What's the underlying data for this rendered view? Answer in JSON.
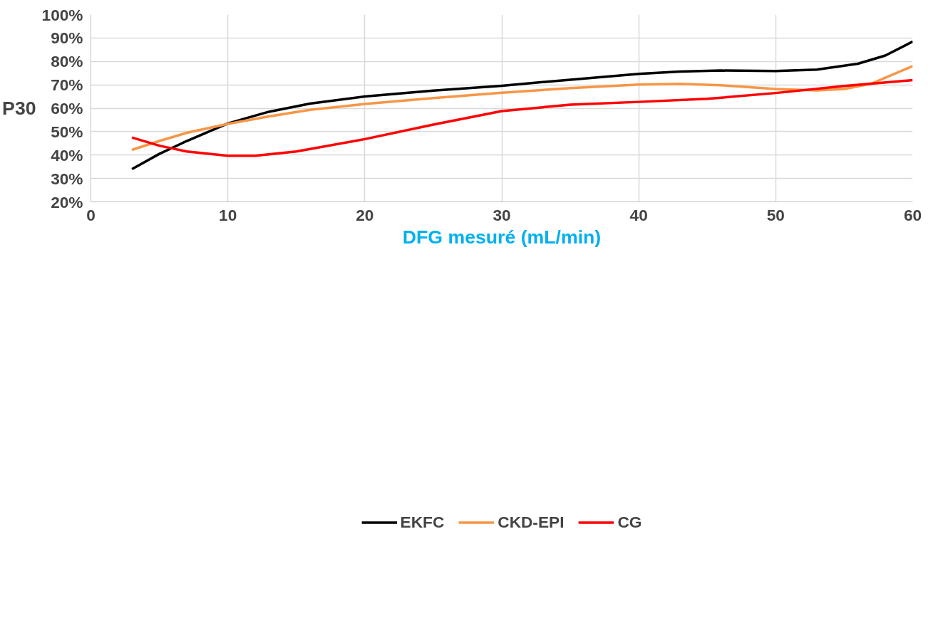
{
  "chart_data": {
    "type": "line",
    "xlabel": "DFG mesuré (mL/min)",
    "ylabel": "P30",
    "xlim": [
      0,
      60
    ],
    "xticks": [
      0,
      10,
      20,
      30,
      40,
      50,
      60
    ],
    "ylim": [
      20,
      100
    ],
    "yticks": [
      {
        "value": 20,
        "label": "20%"
      },
      {
        "value": 30,
        "label": "30%"
      },
      {
        "value": 40,
        "label": "40%"
      },
      {
        "value": 50,
        "label": "50%"
      },
      {
        "value": 60,
        "label": "60%"
      },
      {
        "value": 70,
        "label": "70%"
      },
      {
        "value": 80,
        "label": "80%"
      },
      {
        "value": 90,
        "label": "90%"
      },
      {
        "value": 100,
        "label": "100%"
      }
    ],
    "grid": true,
    "legend": "bottom",
    "marker": "none",
    "line_style": "solid",
    "series": [
      {
        "name": "EKFC",
        "color": "#000000",
        "x": [
          3,
          5,
          7,
          10,
          13,
          16,
          20,
          25,
          30,
          35,
          40,
          43,
          46,
          50,
          53,
          56,
          58,
          60
        ],
        "values": [
          34,
          40.5,
          46,
          53.5,
          58.5,
          62,
          65,
          67.5,
          69.6,
          72.2,
          74.7,
          75.7,
          76.1,
          75.9,
          76.5,
          79,
          82.5,
          88.5
        ]
      },
      {
        "name": "CKD-EPI",
        "color": "#f79646",
        "x": [
          3,
          5,
          7,
          10,
          13,
          16,
          20,
          25,
          30,
          35,
          40,
          43,
          46,
          50,
          53,
          55,
          57,
          60
        ],
        "values": [
          42.2,
          46,
          49.5,
          53.3,
          56.5,
          59.3,
          61.8,
          64.3,
          66.6,
          68.6,
          70.1,
          70.4,
          69.8,
          68.2,
          67.6,
          68.2,
          70.5,
          78
        ]
      },
      {
        "name": "CG",
        "color": "#ff0000",
        "x": [
          3,
          5,
          7,
          10,
          12,
          15,
          20,
          25,
          30,
          35,
          40,
          45,
          50,
          55,
          60
        ],
        "values": [
          47.5,
          44,
          41.5,
          39.7,
          39.7,
          41.5,
          46.8,
          53,
          58.8,
          61.5,
          62.7,
          64,
          66.5,
          69.5,
          72
        ]
      }
    ]
  }
}
